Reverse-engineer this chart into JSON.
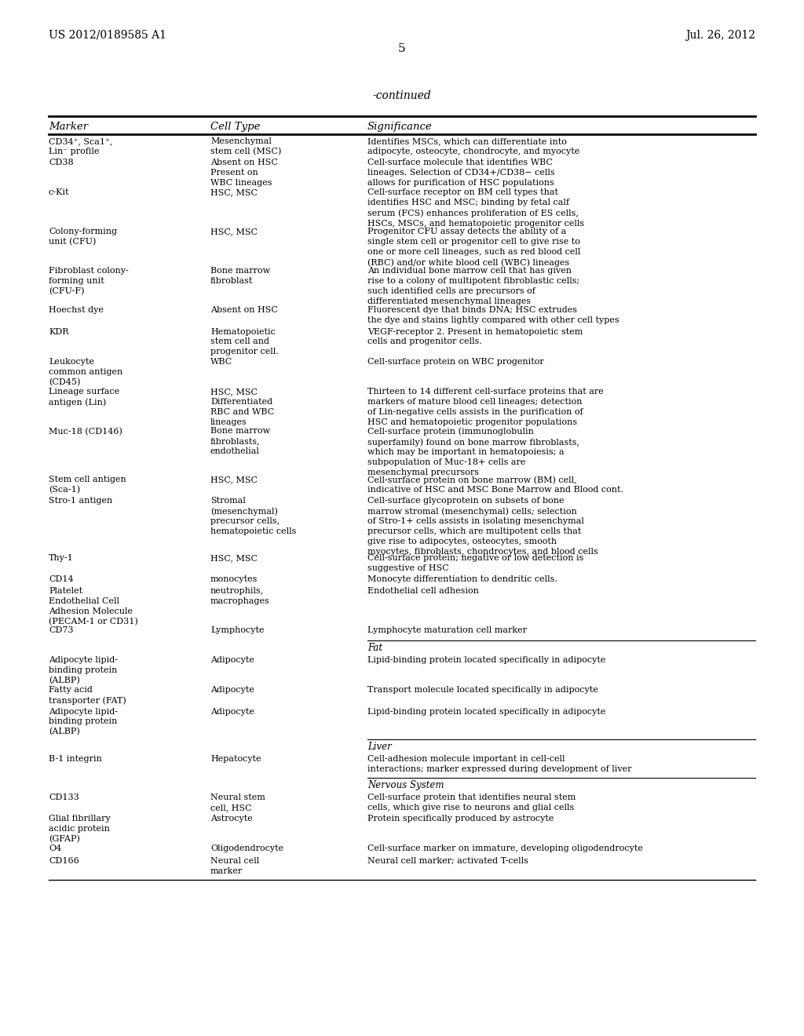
{
  "bg_color": "#ffffff",
  "header_left": "US 2012/0189585 A1",
  "header_right": "Jul. 26, 2012",
  "page_number": "5",
  "continued_text": "-continued",
  "table_columns": [
    "Marker",
    "Cell Type",
    "Significance"
  ],
  "rows": [
    {
      "marker": "CD34⁺, Sca1⁺,\nLin⁻ profile",
      "cell_type": "Mesenchymal\nstem cell (MSC)",
      "significance": "Identifies MSCs, which can differentiate into\nadipocyte, osteocyte, chondrocyte, and myocyte",
      "section_before": null
    },
    {
      "marker": "CD38",
      "cell_type": "Absent on HSC\nPresent on\nWBC lineages",
      "significance": "Cell-surface molecule that identifies WBC\nlineages. Selection of CD34+/CD38− cells\nallows for purification of HSC populations",
      "section_before": null
    },
    {
      "marker": "c-Kit",
      "cell_type": "HSC, MSC",
      "significance": "Cell-surface receptor on BM cell types that\nidentifies HSC and MSC; binding by fetal calf\nserum (FCS) enhances proliferation of ES cells,\nHSCs, MSCs, and hematopoietic progenitor cells",
      "section_before": null
    },
    {
      "marker": "Colony-forming\nunit (CFU)",
      "cell_type": "HSC, MSC",
      "significance": "Progenitor CFU assay detects the ability of a\nsingle stem cell or progenitor cell to give rise to\none or more cell lineages, such as red blood cell\n(RBC) and/or white blood cell (WBC) lineages",
      "section_before": null
    },
    {
      "marker": "Fibroblast colony-\nforming unit\n(CFU-F)",
      "cell_type": "Bone marrow\nfibroblast",
      "significance": "An individual bone marrow cell that has given\nrise to a colony of multipotent fibroblastic cells;\nsuch identified cells are precursors of\ndifferentiated mesenchymal lineages",
      "section_before": null
    },
    {
      "marker": "Hoechst dye",
      "cell_type": "Absent on HSC",
      "significance": "Fluorescent dye that binds DNA; HSC extrudes\nthe dye and stains lightly compared with other cell types",
      "section_before": null
    },
    {
      "marker": "KDR",
      "cell_type": "Hematopoietic\nstem cell and\nprogenitor cell.",
      "significance": "VEGF-receptor 2. Present in hematopoietic stem\ncells and progenitor cells.",
      "section_before": null
    },
    {
      "marker": "Leukocyte\ncommon antigen\n(CD45)",
      "cell_type": "WBC",
      "significance": "Cell-surface protein on WBC progenitor",
      "section_before": null
    },
    {
      "marker": "Lineage surface\nantigen (Lin)",
      "cell_type": "HSC, MSC\nDifferentiated\nRBC and WBC\nlineages",
      "significance": "Thirteen to 14 different cell-surface proteins that are\nmarkers of mature blood cell lineages; detection\nof Lin-negative cells assists in the purification of\nHSC and hematopoietic progenitor populations",
      "section_before": null
    },
    {
      "marker": "Muc-18 (CD146)",
      "cell_type": "Bone marrow\nfibroblasts,\nendothelial",
      "significance": "Cell-surface protein (immunoglobulin\nsuperfamily) found on bone marrow fibroblasts,\nwhich may be important in hematopoiesis; a\nsubpopulation of Muc-18+ cells are\nmesenchymal precursors",
      "section_before": null
    },
    {
      "marker": "Stem cell antigen\n(Sca-1)",
      "cell_type": "HSC, MSC",
      "significance": "Cell-surface protein on bone marrow (BM) cell,\nindicative of HSC and MSC Bone Marrow and Blood cont.",
      "section_before": null
    },
    {
      "marker": "Stro-1 antigen",
      "cell_type": "Stromal\n(mesenchymal)\nprecursor cells,\nhematopoietic cells",
      "significance": "Cell-surface glycoprotein on subsets of bone\nmarrow stromal (mesenchymal) cells; selection\nof Stro-1+ cells assists in isolating mesenchymal\nprecursor cells, which are multipotent cells that\ngive rise to adipocytes, osteocytes, smooth\nmyocytes, fibroblasts, chondrocytes, and blood cells",
      "section_before": null
    },
    {
      "marker": "Thy-1",
      "cell_type": "HSC, MSC",
      "significance": "Cell-surface protein; negative or low detection is\nsuggestive of HSC",
      "section_before": null
    },
    {
      "marker": "CD14",
      "cell_type": "monocytes",
      "significance": "Monocyte differentiation to dendritic cells.",
      "section_before": null
    },
    {
      "marker": "Platelet\nEndothelial Cell\nAdhesion Molecule\n(PECAM-1 or CD31)",
      "cell_type": "neutrophils,\nmacrophages",
      "significance": "Endothelial cell adhesion",
      "section_before": null
    },
    {
      "marker": "CD73",
      "cell_type": "Lymphocyte",
      "significance": "Lymphocyte maturation cell marker",
      "section_before": null
    },
    {
      "marker": "Adipocyte lipid-\nbinding protein\n(ALBP)",
      "cell_type": "Adipocyte",
      "significance": "Lipid-binding protein located specifically in adipocyte",
      "section_before": "Fat"
    },
    {
      "marker": "Fatty acid\ntransporter (FAT)",
      "cell_type": "Adipocyte",
      "significance": "Transport molecule located specifically in adipocyte",
      "section_before": null
    },
    {
      "marker": "Adipocyte lipid-\nbinding protein\n(ALBP)",
      "cell_type": "Adipocyte",
      "significance": "Lipid-binding protein located specifically in adipocyte",
      "section_before": null
    },
    {
      "marker": "B-1 integrin",
      "cell_type": "Hepatocyte",
      "significance": "Cell-adhesion molecule important in cell-cell\ninteractions; marker expressed during development of liver",
      "section_before": "Liver"
    },
    {
      "marker": "CD133",
      "cell_type": "Neural stem\ncell, HSC",
      "significance": "Cell-surface protein that identifies neural stem\ncells, which give rise to neurons and glial cells",
      "section_before": "Nervous System"
    },
    {
      "marker": "Glial fibrillary\nacidic protein\n(GFAP)",
      "cell_type": "Astrocyte",
      "significance": "Protein specifically produced by astrocyte",
      "section_before": null
    },
    {
      "marker": "O4",
      "cell_type": "Oligodendrocyte",
      "significance": "Cell-surface marker on immature, developing oligodendrocyte",
      "section_before": null
    },
    {
      "marker": "CD166",
      "cell_type": "Neural cell\nmarker",
      "significance": "Neural cell marker; activated T-cells",
      "section_before": null
    }
  ]
}
